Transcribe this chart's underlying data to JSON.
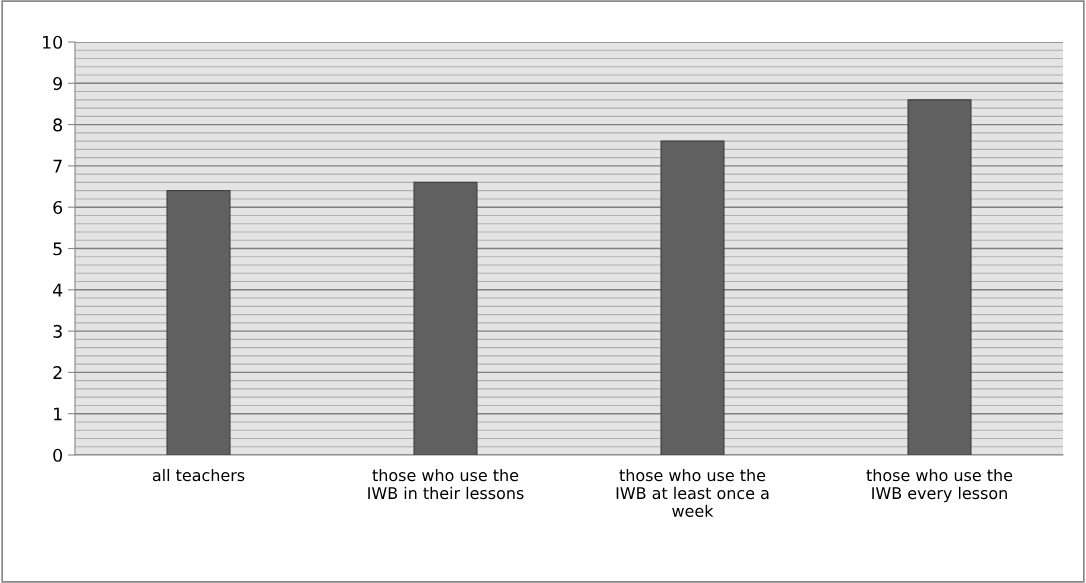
{
  "chart_data": {
    "type": "bar",
    "categories": [
      "all teachers",
      "those who use the IWB in their lessons",
      "those who use the IWB at least once a week",
      "those who use the IWB every lesson"
    ],
    "values": [
      6.4,
      6.6,
      7.6,
      8.6
    ],
    "color": "#606060",
    "ylim": [
      0,
      10
    ],
    "yticks": [
      0,
      1,
      2,
      3,
      4,
      5,
      6,
      7,
      8,
      9,
      10
    ],
    "grid": "y"
  }
}
